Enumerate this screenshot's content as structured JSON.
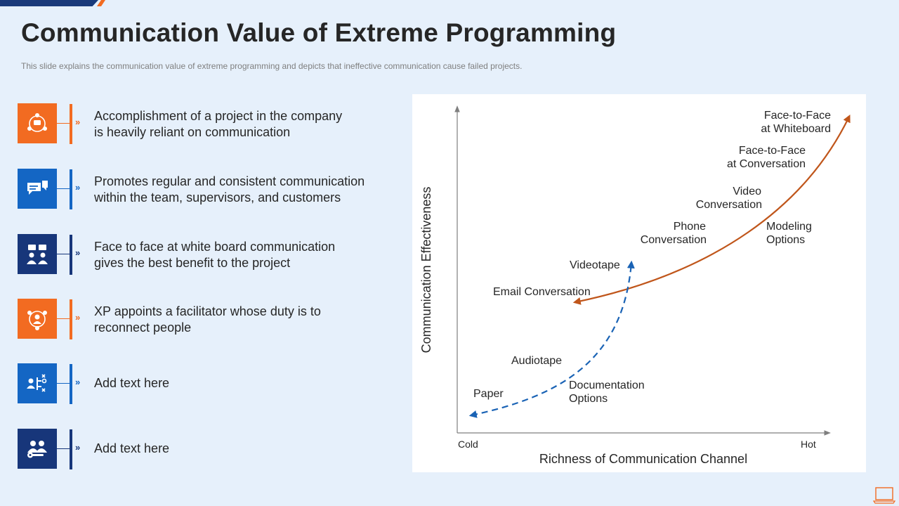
{
  "slide": {
    "title": "Communication Value of Extreme Programming",
    "subtitle": "This slide explains the communication value of extreme programming  and depicts that ineffective  communication cause failed projects."
  },
  "colors": {
    "orange": "#f26b21",
    "blue": "#1466c4",
    "navy": "#17367a",
    "curve_orange": "#c0561b",
    "curve_blue": "#1a63b5",
    "background": "#e6f0fb"
  },
  "points": [
    {
      "icon": "team-network-icon",
      "color": "orange",
      "text_line1": "Accomplishment of a project in the company",
      "text_line2": "is heavily reliant on communication"
    },
    {
      "icon": "chat-bubbles-icon",
      "color": "blue",
      "text_line1": "Promotes regular and consistent communication",
      "text_line2": "within the team, supervisors, and customers"
    },
    {
      "icon": "people-conversation-icon",
      "color": "navy",
      "text_line1": "Face to face at white board communication",
      "text_line2": "gives the best benefit to the project"
    },
    {
      "icon": "team-meeting-icon",
      "color": "orange",
      "text_line1": "XP appoints a facilitator whose duty is to",
      "text_line2": "reconnect people"
    },
    {
      "icon": "user-flow-icon",
      "color": "blue",
      "text_line1": "Add text here",
      "text_line2": ""
    },
    {
      "icon": "support-team-icon",
      "color": "navy",
      "text_line1": "Add text here",
      "text_line2": ""
    }
  ],
  "chevron": "»",
  "chart_data": {
    "type": "line",
    "xlabel": "Richness of Communication Channel",
    "ylabel": "Communication Effectiveness",
    "x_ticks": [
      "Cold",
      "Hot"
    ],
    "x_scale": "ordinal (Cold to Hot)",
    "y_scale": "ordinal (low to high)",
    "grid": false,
    "series": [
      {
        "style": "solid",
        "color": "curve_orange",
        "points": [
          "Email Conversation",
          "Phone Conversation",
          "Video Conversation",
          "Face-to-Face at Conversation",
          "Face-to-Face at Whiteboard"
        ]
      },
      {
        "style": "dashed",
        "color": "curve_blue",
        "points": [
          "Paper",
          "Audiotape",
          "Videotape"
        ]
      }
    ],
    "labels": {
      "face_whiteboard_1": "Face-to-Face",
      "face_whiteboard_2": "at Whiteboard",
      "face_conversation_1": "Face-to-Face",
      "face_conversation_2": "at Conversation",
      "video_1": "Video",
      "video_2": "Conversation",
      "phone_1": "Phone",
      "phone_2": "Conversation",
      "modeling_1": "Modeling",
      "modeling_2": "Options",
      "videotape": "Videotape",
      "email": "Email Conversation",
      "audiotape": "Audiotape",
      "documentation_1": "Documentation",
      "documentation_2": "Options",
      "paper": "Paper"
    }
  }
}
